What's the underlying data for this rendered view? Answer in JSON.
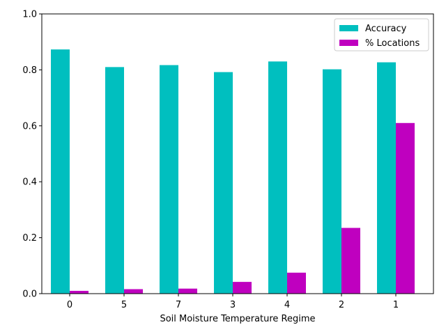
{
  "chart_data": {
    "type": "bar",
    "title": "",
    "xlabel": "Soil Moisture Temperature Regime",
    "ylabel": "",
    "categories": [
      "0",
      "5",
      "7",
      "3",
      "4",
      "2",
      "1"
    ],
    "series": [
      {
        "name": "Accuracy",
        "color": "#00bfbf",
        "values": [
          0.873,
          0.81,
          0.817,
          0.792,
          0.83,
          0.802,
          0.827
        ]
      },
      {
        "name": "% Locations",
        "color": "#bf00bf",
        "values": [
          0.01,
          0.016,
          0.018,
          0.042,
          0.075,
          0.235,
          0.61
        ]
      }
    ],
    "ylim": [
      0,
      1.0
    ],
    "yticks": [
      "0.0",
      "0.2",
      "0.4",
      "0.6",
      "0.8",
      "1.0"
    ],
    "grid": false,
    "legend_position": "upper-right"
  }
}
